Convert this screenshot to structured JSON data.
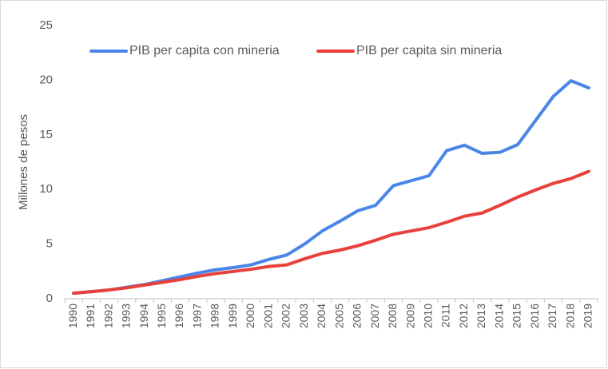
{
  "chart_data": {
    "type": "line",
    "y_label": "Millones de pesos",
    "categories": [
      "1990",
      "1991",
      "1992",
      "1993",
      "1994",
      "1995",
      "1996",
      "1997",
      "1998",
      "1999",
      "2000",
      "2001",
      "2002",
      "2003",
      "2004",
      "2005",
      "2006",
      "2007",
      "2008",
      "2009",
      "2010",
      "2011",
      "2012",
      "2013",
      "2014",
      "2015",
      "2016",
      "2017",
      "2018",
      "2019"
    ],
    "series": [
      {
        "name": "PIB per capita con mineria",
        "color": "#4a86e8",
        "values": [
          0.5,
          0.65,
          0.8,
          1.05,
          1.3,
          1.65,
          2.0,
          2.35,
          2.65,
          2.85,
          3.1,
          3.6,
          4.0,
          5.0,
          6.2,
          7.1,
          8.05,
          8.55,
          10.35,
          10.8,
          11.25,
          13.55,
          14.05,
          13.3,
          13.4,
          14.1,
          16.3,
          18.5,
          19.95,
          19.3
        ]
      },
      {
        "name": "PIB per capita sin mineria",
        "color": "#e8403a",
        "values": [
          0.5,
          0.65,
          0.8,
          1.0,
          1.25,
          1.5,
          1.75,
          2.05,
          2.3,
          2.5,
          2.7,
          2.95,
          3.1,
          3.65,
          4.15,
          4.45,
          4.85,
          5.35,
          5.9,
          6.2,
          6.5,
          7.0,
          7.55,
          7.85,
          8.55,
          9.3,
          9.95,
          10.55,
          11.0,
          11.65
        ]
      }
    ],
    "ylim": [
      0,
      25
    ],
    "yticks": [
      0,
      5,
      10,
      15,
      20,
      25
    ],
    "grid": false,
    "legend": "top"
  }
}
